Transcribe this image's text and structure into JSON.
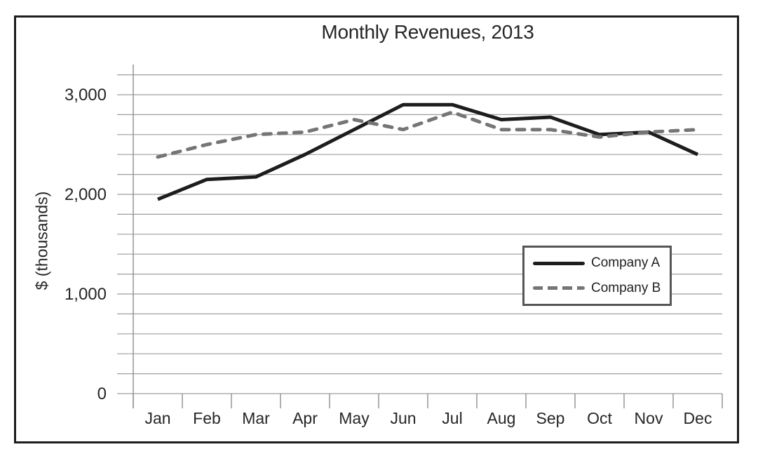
{
  "chart_data": {
    "type": "line",
    "title": "Monthly Revenues, 2013",
    "xlabel": "",
    "ylabel": "$ (thousands)",
    "categories": [
      "Jan",
      "Feb",
      "Mar",
      "Apr",
      "May",
      "Jun",
      "Jul",
      "Aug",
      "Sep",
      "Oct",
      "Nov",
      "Dec"
    ],
    "y_axis": {
      "min": 0,
      "max": 3200,
      "gridline_step": 200,
      "grid": true,
      "ticks": [
        {
          "value": 0,
          "label": "0"
        },
        {
          "value": 1000,
          "label": "1,000"
        },
        {
          "value": 2000,
          "label": "2,000"
        },
        {
          "value": 3000,
          "label": "3,000"
        }
      ]
    },
    "legend_position": "middle-right",
    "series": [
      {
        "name": "Company A",
        "style": "solid",
        "color": "#1d1d1d",
        "values": [
          1950,
          2150,
          2175,
          2400,
          2650,
          2900,
          2900,
          2750,
          2775,
          2600,
          2625,
          2400
        ]
      },
      {
        "name": "Company B",
        "style": "dashed",
        "color": "#757575",
        "values": [
          2375,
          2500,
          2600,
          2625,
          2750,
          2650,
          2825,
          2650,
          2650,
          2575,
          2625,
          2650
        ]
      }
    ]
  },
  "colors": {
    "frame_border": "#1d1d1d",
    "gridline": "#9e9e9e",
    "legend_border": "#565656",
    "text": "#262626"
  }
}
